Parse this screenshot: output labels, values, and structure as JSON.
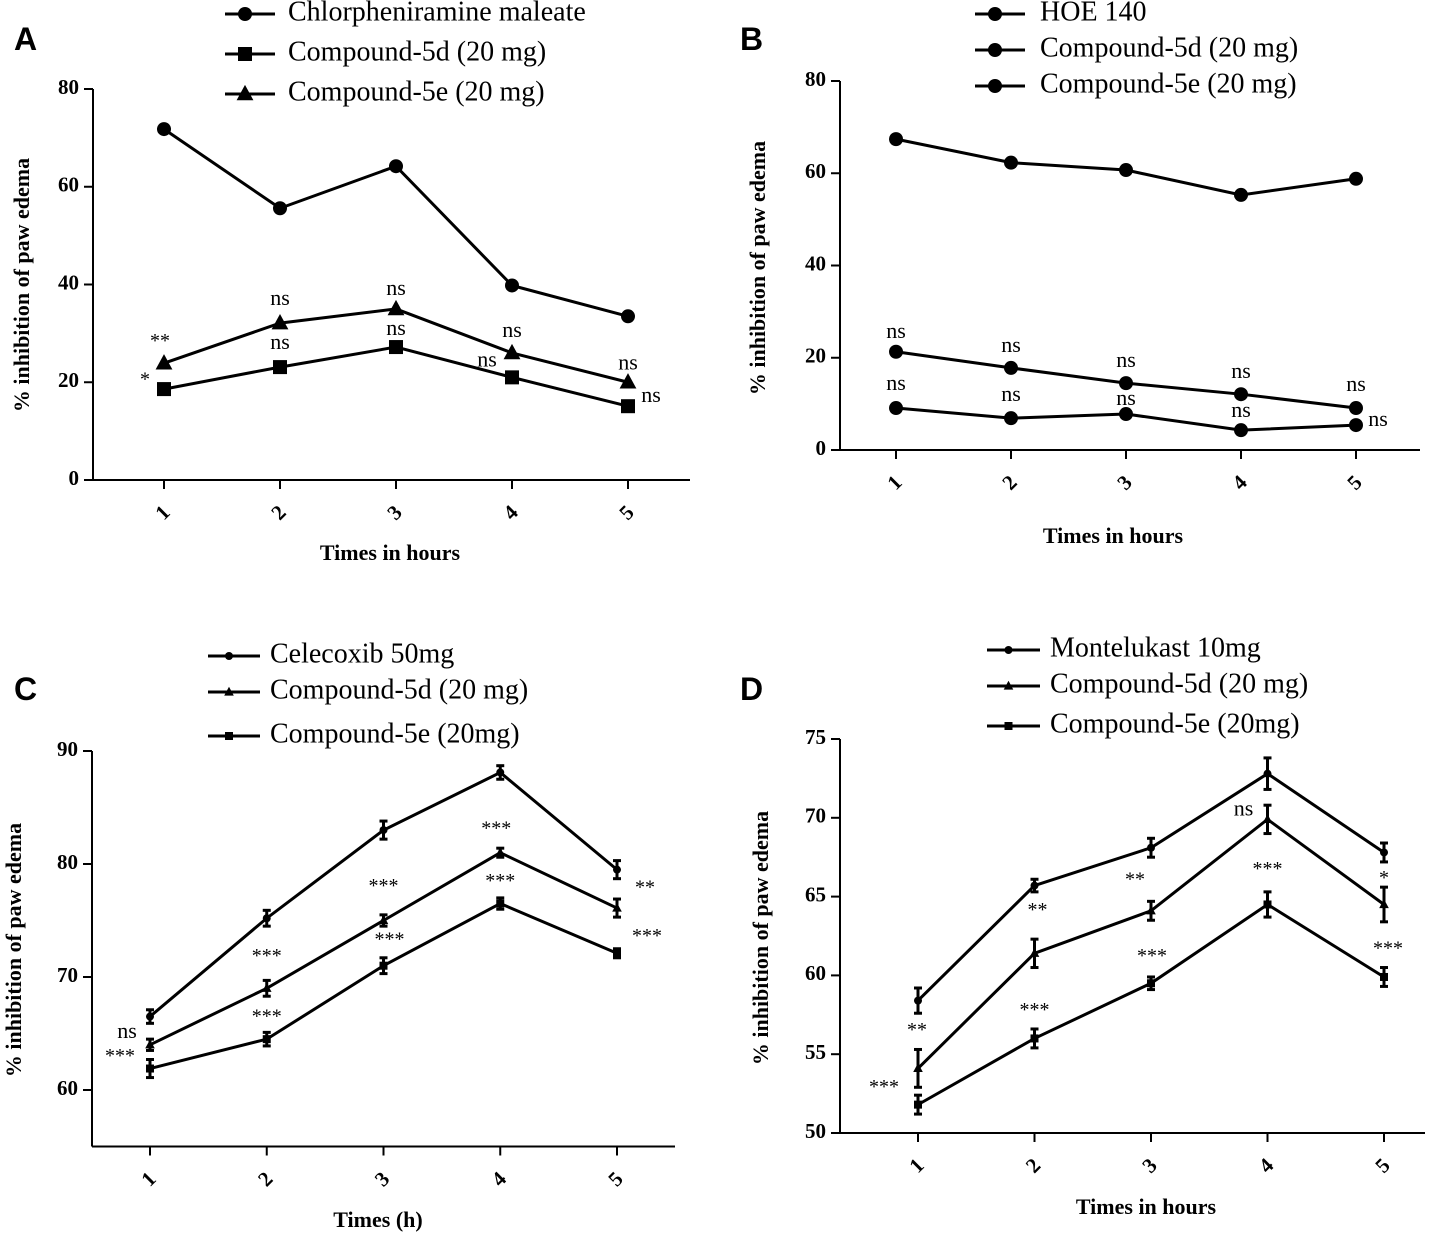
{
  "chart_data": [
    {
      "panel": "A",
      "type": "line",
      "xlabel": "Times in hours",
      "ylabel": "% inhibition of paw edema",
      "x": [
        1,
        2,
        3,
        4,
        5
      ],
      "xticks": [
        "1",
        "2",
        "3",
        "4",
        "5"
      ],
      "ylim": [
        0,
        80
      ],
      "yticks": [
        0,
        20,
        40,
        60,
        80
      ],
      "legend": "top",
      "series": [
        {
          "name": "Chlorpheniramine maleate",
          "marker": "circle",
          "values": [
            71.8,
            55.6,
            64.2,
            39.8,
            33.5
          ],
          "annotations": []
        },
        {
          "name": "Compound-5d (20 mg)",
          "marker": "square",
          "values": [
            18.6,
            23.1,
            27.2,
            21.0,
            15.1
          ],
          "annotations": [
            "*",
            "ns",
            "ns",
            "ns",
            "ns"
          ]
        },
        {
          "name": "Compound-5e (20 mg)",
          "marker": "triangle",
          "values": [
            23.9,
            32.1,
            35.0,
            26.0,
            20.0
          ],
          "annotations": [
            "**",
            "ns",
            "ns",
            "ns",
            "ns"
          ]
        }
      ]
    },
    {
      "panel": "B",
      "type": "line",
      "xlabel": "Times in hours",
      "ylabel": "% inhibition of paw edema",
      "x": [
        1,
        2,
        3,
        4,
        5
      ],
      "xticks": [
        "1",
        "2",
        "3",
        "4",
        "5"
      ],
      "ylim": [
        0,
        80
      ],
      "yticks": [
        0,
        20,
        40,
        60,
        80
      ],
      "legend": "top",
      "series": [
        {
          "name": "HOE 140",
          "marker": "circle",
          "values": [
            67.4,
            62.3,
            60.7,
            55.3,
            58.8
          ],
          "annotations": []
        },
        {
          "name": "Compound-5d (20 mg)",
          "marker": "circle",
          "values": [
            21.3,
            17.8,
            14.5,
            12.1,
            9.1
          ],
          "annotations": [
            "ns",
            "ns",
            "ns",
            "ns",
            "ns"
          ]
        },
        {
          "name": "Compound-5e (20 mg)",
          "marker": "circle",
          "values": [
            9.1,
            6.9,
            7.8,
            4.3,
            5.4
          ],
          "annotations": [
            "ns",
            "ns",
            "ns",
            "ns",
            "ns"
          ]
        }
      ]
    },
    {
      "panel": "C",
      "type": "line",
      "xlabel": "Times (h)",
      "ylabel": "% inhibition of paw edema",
      "x": [
        1,
        2,
        3,
        4,
        5
      ],
      "xticks": [
        "1",
        "2",
        "3",
        "4",
        "5"
      ],
      "ylim": [
        55,
        90
      ],
      "yticks": [
        60,
        70,
        80,
        90
      ],
      "legend": "top",
      "series": [
        {
          "name": "Celecoxib 50mg",
          "marker": "circle",
          "values": [
            66.5,
            75.2,
            83.0,
            88.1,
            79.5
          ],
          "errors": [
            0.6,
            0.7,
            0.8,
            0.6,
            0.8
          ],
          "annotations": []
        },
        {
          "name": "Compound-5d (20 mg)",
          "marker": "triangle",
          "values": [
            64.0,
            69.0,
            75.0,
            81.0,
            76.1
          ],
          "errors": [
            0.5,
            0.7,
            0.5,
            0.4,
            0.8
          ],
          "annotations": [
            "ns",
            "***",
            "***",
            "***",
            "**"
          ]
        },
        {
          "name": "Compound-5e (20mg)",
          "marker": "square",
          "values": [
            61.9,
            64.5,
            71.0,
            76.5,
            72.1
          ],
          "errors": [
            0.8,
            0.6,
            0.7,
            0.5,
            0.4
          ],
          "annotations": [
            "***",
            "***",
            "***",
            "***",
            "***"
          ]
        }
      ]
    },
    {
      "panel": "D",
      "type": "line",
      "xlabel": "Times in hours",
      "ylabel": "% inhibition of paw edema",
      "x": [
        1,
        2,
        3,
        4,
        5
      ],
      "xticks": [
        "1",
        "2",
        "3",
        "4",
        "5"
      ],
      "ylim": [
        50,
        75
      ],
      "yticks": [
        50,
        55,
        60,
        65,
        70,
        75
      ],
      "legend": "top",
      "series": [
        {
          "name": "Montelukast 10mg",
          "marker": "circle",
          "values": [
            58.4,
            65.7,
            68.1,
            72.8,
            67.8
          ],
          "errors": [
            0.8,
            0.4,
            0.6,
            1.0,
            0.6
          ],
          "annotations": []
        },
        {
          "name": "Compound-5d (20 mg)",
          "marker": "triangle",
          "values": [
            54.1,
            61.4,
            64.1,
            69.9,
            64.5
          ],
          "errors": [
            1.2,
            0.9,
            0.6,
            0.9,
            1.1
          ],
          "annotations": [
            "**",
            "**",
            "**",
            "ns",
            "*"
          ]
        },
        {
          "name": "Compound-5e (20mg)",
          "marker": "square",
          "values": [
            51.8,
            56.0,
            59.5,
            64.5,
            59.9
          ],
          "errors": [
            0.6,
            0.6,
            0.4,
            0.8,
            0.6
          ],
          "annotations": [
            "***",
            "***",
            "***",
            "***",
            "***"
          ]
        }
      ]
    }
  ]
}
